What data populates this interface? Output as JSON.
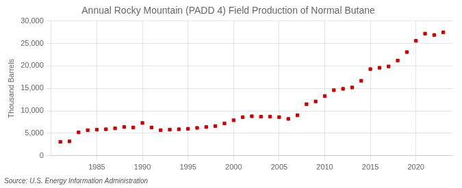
{
  "chart_data": {
    "type": "scatter",
    "title": "Annual Rocky Mountain (PADD 4) Field Production of Normal Butane",
    "ylabel": "Thousand Barrels",
    "annotations": [
      "Source: U.S. Energy Information Administration"
    ],
    "x": [
      1981,
      1982,
      1983,
      1984,
      1985,
      1986,
      1987,
      1988,
      1989,
      1990,
      1991,
      1992,
      1993,
      1994,
      1995,
      1996,
      1997,
      1998,
      1999,
      2000,
      2001,
      2002,
      2003,
      2004,
      2005,
      2006,
      2007,
      2008,
      2009,
      2010,
      2011,
      2012,
      2013,
      2014,
      2015,
      2016,
      2017,
      2018,
      2019,
      2020,
      2021,
      2022,
      2023
    ],
    "values": [
      3100,
      3200,
      5200,
      5700,
      5800,
      5900,
      6100,
      6400,
      6300,
      7300,
      6300,
      5700,
      5800,
      5900,
      6000,
      6200,
      6400,
      6600,
      7200,
      7900,
      8600,
      8800,
      8700,
      8700,
      8600,
      8200,
      9000,
      11500,
      12100,
      13300,
      14600,
      14900,
      15200,
      16700,
      19300,
      19600,
      19900,
      21200,
      23100,
      25600,
      27200,
      26900,
      27500
    ],
    "color": "#cc0000",
    "marker": "square",
    "xlim": [
      1980,
      2024
    ],
    "xticks": [
      1985,
      1990,
      1995,
      2000,
      2005,
      2010,
      2015,
      2020
    ],
    "ylim": [
      0,
      30000
    ],
    "yticks": [
      0,
      {
        "value": 5000,
        "label": "5,000"
      },
      {
        "value": 10000,
        "label": "10,000"
      },
      {
        "value": 15000,
        "label": "15,000"
      },
      {
        "value": 20000,
        "label": "20,000"
      },
      {
        "value": 25000,
        "label": "25,000"
      },
      {
        "value": 30000,
        "label": "30,000"
      }
    ],
    "grid": true
  }
}
